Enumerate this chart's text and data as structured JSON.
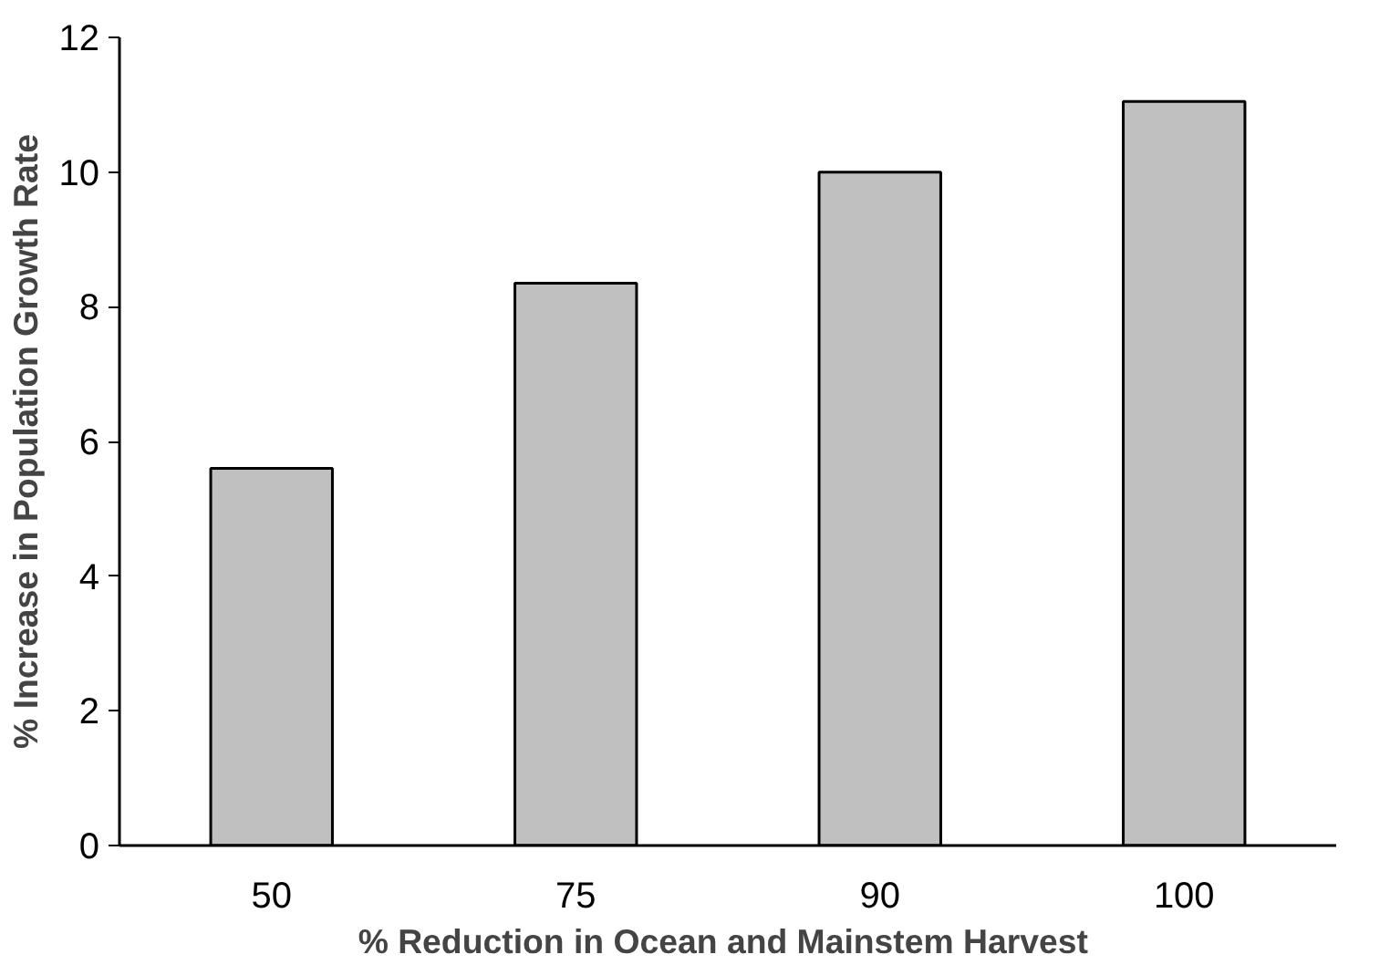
{
  "chart_data": {
    "type": "bar",
    "xlabel": "% Reduction  in Ocean and Mainstem Harvest",
    "ylabel": "% Increase in Population Growth Rate",
    "categories": [
      "50",
      "75",
      "90",
      "100"
    ],
    "values": [
      5.6,
      8.35,
      10.0,
      11.05
    ],
    "color": "#c0c0c0",
    "ylim": [
      0,
      12
    ],
    "yticks": [
      0,
      2,
      4,
      6,
      8,
      10,
      12
    ],
    "grid": false
  }
}
